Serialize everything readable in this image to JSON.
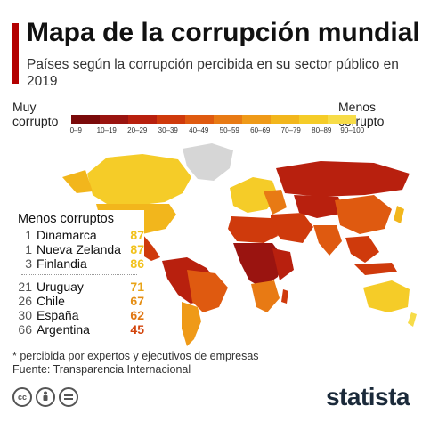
{
  "title": "Mapa de la corrupción mundial",
  "subtitle": "Países según la corrupción percibida en su sector público en 2019",
  "legend": {
    "left_label": "Muy corrupto",
    "right_label": "Menos corrupto",
    "bins": [
      "0–9",
      "10–19",
      "20–29",
      "30–39",
      "40–49",
      "50–59",
      "60–69",
      "70–79",
      "80–89",
      "90–100"
    ],
    "colors": [
      "#7a0a0a",
      "#9a1410",
      "#b8200e",
      "#cf3a0c",
      "#df5a10",
      "#e87a14",
      "#ef9a18",
      "#f2b61c",
      "#f5cc28",
      "#f7dc48"
    ]
  },
  "panel": {
    "heading": "Menos corruptos",
    "top": [
      {
        "rank": "1",
        "country": "Dinamarca",
        "score": "87"
      },
      {
        "rank": "1",
        "country": "Nueva Zelanda",
        "score": "87"
      },
      {
        "rank": "3",
        "country": "Finlandia",
        "score": "86"
      }
    ],
    "others": [
      {
        "rank": "21",
        "country": "Uruguay",
        "score": "71"
      },
      {
        "rank": "26",
        "country": "Chile",
        "score": "67"
      },
      {
        "rank": "30",
        "country": "España",
        "score": "62"
      },
      {
        "rank": "66",
        "country": "Argentina",
        "score": "45"
      }
    ],
    "score_colors": {
      "87": "#f2c21c",
      "86": "#f2c21c",
      "71": "#e8a418",
      "67": "#e58e14",
      "62": "#e07612",
      "45": "#d2440c"
    }
  },
  "footnote_1": "* percibida por expertos y ejecutivos de empresas",
  "footnote_2": "Fuente: Transparencia Internacional",
  "brand": "statista",
  "icons": [
    "cc-icon",
    "attribution-icon",
    "noderivs-icon"
  ]
}
